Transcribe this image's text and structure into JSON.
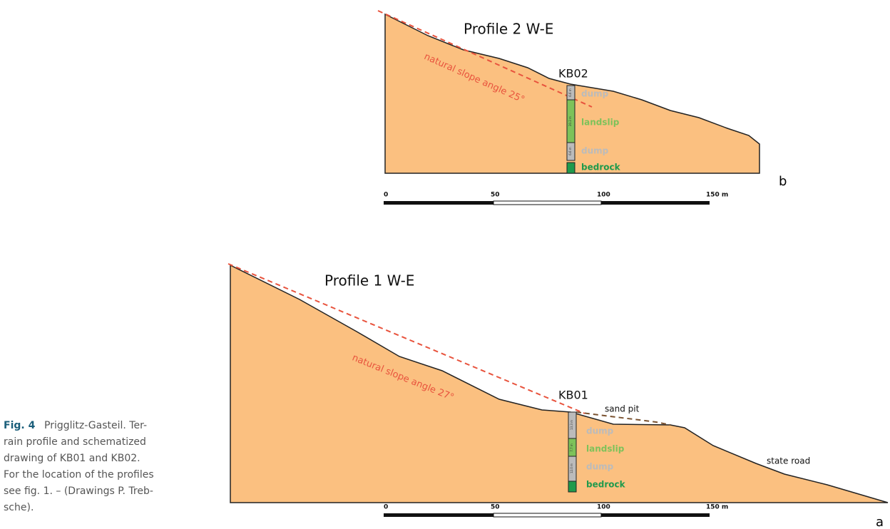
{
  "profile2": {
    "title": "Profile 2 W-E",
    "slope_label": "natural slope angle 25°",
    "borehole": "KB02",
    "layer_thickness": [
      "6.6 m",
      "20.2 m",
      "6.6 m"
    ],
    "layers": [
      "dump",
      "landslip",
      "dump",
      "bedrock"
    ],
    "panel": "b",
    "scale": [
      "0",
      "50",
      "100",
      "150 m"
    ]
  },
  "profile1": {
    "title": "Profile 1 W-E",
    "slope_label": "natural slope angle 27°",
    "borehole": "KB01",
    "layer_thickness": [
      "13.3 m",
      "7.7 m",
      "12.0 m"
    ],
    "layers": [
      "dump",
      "landslip",
      "dump",
      "bedrock"
    ],
    "feature_labels": [
      "sand pit",
      "state road"
    ],
    "panel": "a",
    "scale": [
      "0",
      "50",
      "100",
      "150 m"
    ]
  },
  "caption": {
    "label": "Fig. 4",
    "lines": [
      "Prigglitz-Gasteil. Ter-",
      "rain profile and schematized",
      "drawing of KB01 and KB02.",
      "For the location of the profiles",
      "see fig. 1. – (Drawings P. Treb-",
      "sche)."
    ]
  }
}
